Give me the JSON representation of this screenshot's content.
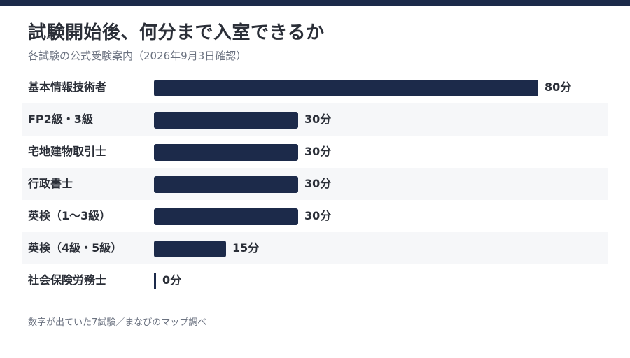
{
  "chart_data": {
    "type": "bar",
    "orientation": "horizontal",
    "title": "試験開始後、何分まで入室できるか",
    "subtitle": "各試験の公式受験案内（2026年9月3日確認）",
    "categories": [
      "基本情報技術者",
      "FP2級・3級",
      "宅地建物取引士",
      "行政書士",
      "英検（1〜3級）",
      "英検（4級・5級）",
      "社会保険労務士"
    ],
    "values": [
      80,
      30,
      30,
      30,
      30,
      15,
      0
    ],
    "value_labels": [
      "80分",
      "30分",
      "30分",
      "30分",
      "30分",
      "15分",
      "0分"
    ],
    "xlim": [
      0,
      80
    ],
    "bar_color": "#1c2a4a",
    "grid": false,
    "footnote": "数字が出ていた7試験／まなびのマップ調べ"
  }
}
